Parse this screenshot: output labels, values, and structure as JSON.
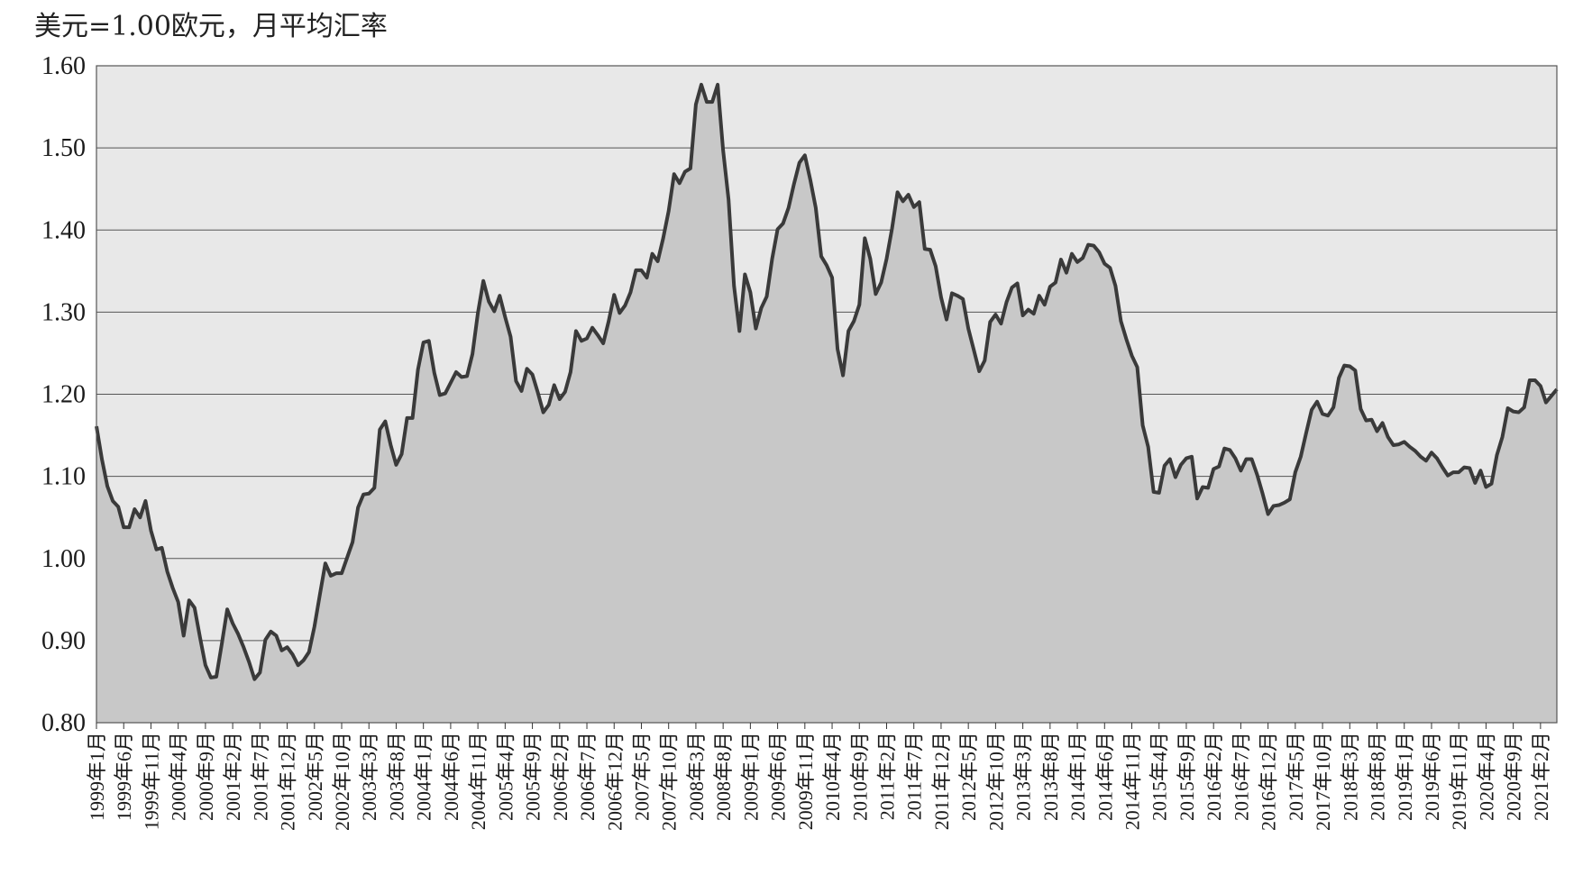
{
  "chart_data": {
    "type": "area",
    "ylabel": "美元=1.00欧元，月平均汇率",
    "ylim": [
      0.8,
      1.6
    ],
    "yticks": [
      "0.80",
      "0.90",
      "1.00",
      "1.10",
      "1.20",
      "1.30",
      "1.40",
      "1.50",
      "1.60"
    ],
    "grid": true,
    "colors": {
      "fill": "#c8c8c8",
      "plot_bg": "#e8e8e8",
      "line": "#3a3a3a",
      "grid": "#555555"
    },
    "x_tick_labels": [
      "1999年1月",
      "1999年6月",
      "1999年11月",
      "2000年4月",
      "2000年9月",
      "2001年2月",
      "2001年7月",
      "2001年12月",
      "2002年5月",
      "2002年10月",
      "2003年3月",
      "2003年8月",
      "2004年1月",
      "2004年6月",
      "2004年11月",
      "2005年4月",
      "2005年9月",
      "2006年2月",
      "2006年7月",
      "2006年12月",
      "2007年5月",
      "2007年10月",
      "2008年3月",
      "2008年8月",
      "2009年1月",
      "2009年6月",
      "2009年11月",
      "2010年4月",
      "2010年9月",
      "2011年2月",
      "2011年7月",
      "2011年12月",
      "2012年5月",
      "2012年10月",
      "2013年3月",
      "2013年8月",
      "2014年1月",
      "2014年6月",
      "2014年11月",
      "2015年4月",
      "2015年9月",
      "2016年2月",
      "2016年7月",
      "2016年12月",
      "2017年5月",
      "2017年10月",
      "2018年3月",
      "2018年8月",
      "2019年1月",
      "2019年6月",
      "2019年11月",
      "2020年4月",
      "2020年9月",
      "2021年2月"
    ],
    "x_start": "1999年1月",
    "values": [
      1.161,
      1.121,
      1.088,
      1.07,
      1.063,
      1.038,
      1.038,
      1.06,
      1.05,
      1.07,
      1.034,
      1.011,
      1.013,
      0.984,
      0.964,
      0.947,
      0.906,
      0.949,
      0.94,
      0.904,
      0.87,
      0.855,
      0.856,
      0.896,
      0.938,
      0.921,
      0.908,
      0.892,
      0.874,
      0.853,
      0.861,
      0.901,
      0.911,
      0.906,
      0.888,
      0.892,
      0.883,
      0.87,
      0.876,
      0.886,
      0.917,
      0.956,
      0.994,
      0.979,
      0.982,
      0.982,
      1.001,
      1.02,
      1.062,
      1.078,
      1.079,
      1.086,
      1.157,
      1.167,
      1.138,
      1.114,
      1.127,
      1.171,
      1.171,
      1.23,
      1.263,
      1.265,
      1.226,
      1.199,
      1.201,
      1.214,
      1.227,
      1.221,
      1.222,
      1.249,
      1.299,
      1.338,
      1.313,
      1.301,
      1.32,
      1.294,
      1.27,
      1.216,
      1.204,
      1.231,
      1.224,
      1.202,
      1.178,
      1.187,
      1.211,
      1.194,
      1.203,
      1.227,
      1.277,
      1.265,
      1.268,
      1.281,
      1.272,
      1.262,
      1.289,
      1.321,
      1.299,
      1.308,
      1.324,
      1.351,
      1.351,
      1.342,
      1.371,
      1.362,
      1.39,
      1.423,
      1.468,
      1.457,
      1.471,
      1.475,
      1.553,
      1.577,
      1.556,
      1.556,
      1.577,
      1.497,
      1.437,
      1.332,
      1.277,
      1.346,
      1.324,
      1.28,
      1.305,
      1.319,
      1.365,
      1.401,
      1.408,
      1.427,
      1.456,
      1.482,
      1.491,
      1.461,
      1.427,
      1.368,
      1.357,
      1.342,
      1.255,
      1.223,
      1.277,
      1.289,
      1.309,
      1.39,
      1.365,
      1.322,
      1.336,
      1.365,
      1.402,
      1.446,
      1.435,
      1.443,
      1.428,
      1.434,
      1.377,
      1.376,
      1.356,
      1.318,
      1.291,
      1.323,
      1.32,
      1.316,
      1.28,
      1.254,
      1.228,
      1.241,
      1.288,
      1.297,
      1.286,
      1.312,
      1.33,
      1.335,
      1.296,
      1.303,
      1.298,
      1.32,
      1.309,
      1.331,
      1.336,
      1.364,
      1.348,
      1.371,
      1.361,
      1.366,
      1.382,
      1.381,
      1.373,
      1.359,
      1.354,
      1.332,
      1.289,
      1.267,
      1.247,
      1.233,
      1.162,
      1.136,
      1.081,
      1.08,
      1.113,
      1.121,
      1.099,
      1.114,
      1.122,
      1.124,
      1.073,
      1.087,
      1.086,
      1.109,
      1.112,
      1.134,
      1.132,
      1.122,
      1.107,
      1.121,
      1.121,
      1.102,
      1.079,
      1.054,
      1.064,
      1.065,
      1.068,
      1.072,
      1.105,
      1.124,
      1.153,
      1.181,
      1.191,
      1.176,
      1.174,
      1.184,
      1.22,
      1.235,
      1.234,
      1.229,
      1.182,
      1.168,
      1.169,
      1.155,
      1.165,
      1.148,
      1.138,
      1.139,
      1.142,
      1.136,
      1.131,
      1.124,
      1.119,
      1.129,
      1.122,
      1.111,
      1.101,
      1.105,
      1.105,
      1.111,
      1.11,
      1.092,
      1.107,
      1.087,
      1.091,
      1.126,
      1.148,
      1.183,
      1.179,
      1.178,
      1.184,
      1.217,
      1.217,
      1.21,
      1.19,
      1.198,
      1.206
    ]
  }
}
